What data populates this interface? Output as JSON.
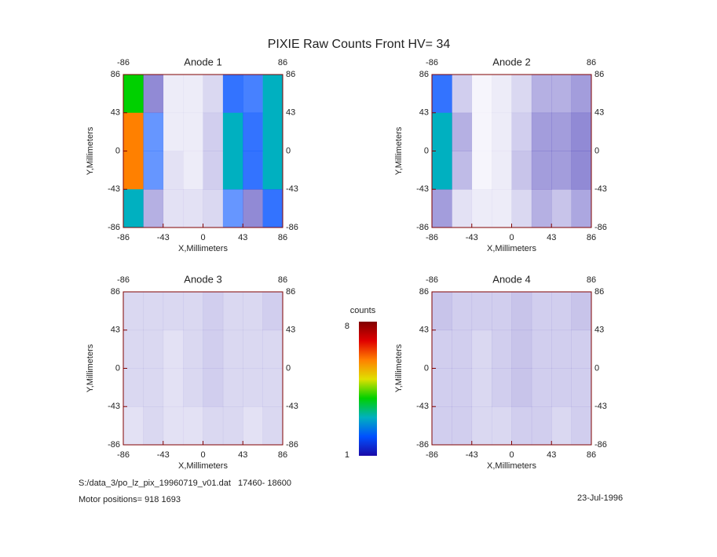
{
  "title": "PIXIE Raw Counts Front HV= 34",
  "chart_data": [
    {
      "type": "heatmap",
      "title": "Anode 1",
      "xlabel": "X,Millimeters",
      "ylabel": "Y,Millimeters",
      "xlim": [
        -86,
        86
      ],
      "ylim": [
        -86,
        86
      ],
      "xticks": [
        -86,
        -43,
        0,
        43,
        86
      ],
      "yticks": [
        -86,
        -43,
        0,
        43,
        86
      ],
      "z": [
        [
          4,
          1.2,
          0.2,
          0.2,
          0.4,
          2,
          1.8,
          2.5
        ],
        [
          6,
          1.5,
          0.2,
          0.2,
          0.5,
          2.5,
          2,
          3
        ],
        [
          5.5,
          1.5,
          0.3,
          0.2,
          0.5,
          2.5,
          2,
          3
        ],
        [
          2.5,
          0.8,
          0.3,
          0.3,
          0.4,
          1.5,
          1.2,
          2
        ]
      ]
    },
    {
      "type": "heatmap",
      "title": "Anode 2",
      "xlabel": "X,Millimeters",
      "ylabel": "Y,Millimeters",
      "xlim": [
        -86,
        86
      ],
      "ylim": [
        -86,
        86
      ],
      "xticks": [
        -86,
        -43,
        0,
        43,
        86
      ],
      "yticks": [
        -86,
        -43,
        0,
        43,
        86
      ],
      "z": [
        [
          2,
          0.5,
          0.1,
          0.2,
          0.4,
          0.8,
          0.8,
          1
        ],
        [
          3,
          0.8,
          0.1,
          0.2,
          0.5,
          1,
          1,
          1.2
        ],
        [
          2.5,
          0.7,
          0.1,
          0.2,
          0.6,
          1,
          1,
          1.2
        ],
        [
          1,
          0.3,
          0.2,
          0.2,
          0.4,
          0.8,
          0.6,
          0.9
        ]
      ]
    },
    {
      "type": "heatmap",
      "title": "Anode 3",
      "xlabel": "X,Millimeters",
      "ylabel": "Y,Millimeters",
      "xlim": [
        -86,
        86
      ],
      "ylim": [
        -86,
        86
      ],
      "xticks": [
        -86,
        -43,
        0,
        43,
        86
      ],
      "yticks": [
        -86,
        -43,
        0,
        43,
        86
      ],
      "z": [
        [
          0.4,
          0.4,
          0.4,
          0.4,
          0.5,
          0.4,
          0.4,
          0.5
        ],
        [
          0.4,
          0.4,
          0.3,
          0.4,
          0.5,
          0.4,
          0.4,
          0.4
        ],
        [
          0.4,
          0.4,
          0.3,
          0.4,
          0.5,
          0.4,
          0.4,
          0.4
        ],
        [
          0.3,
          0.4,
          0.3,
          0.3,
          0.4,
          0.4,
          0.3,
          0.4
        ]
      ]
    },
    {
      "type": "heatmap",
      "title": "Anode 4",
      "xlabel": "X,Millimeters",
      "ylabel": "Y,Millimeters",
      "xlim": [
        -86,
        86
      ],
      "ylim": [
        -86,
        86
      ],
      "xticks": [
        -86,
        -43,
        0,
        43,
        86
      ],
      "yticks": [
        -86,
        -43,
        0,
        43,
        86
      ],
      "z": [
        [
          0.6,
          0.5,
          0.5,
          0.5,
          0.6,
          0.5,
          0.5,
          0.6
        ],
        [
          0.5,
          0.5,
          0.4,
          0.5,
          0.6,
          0.5,
          0.5,
          0.5
        ],
        [
          0.5,
          0.5,
          0.4,
          0.5,
          0.6,
          0.5,
          0.5,
          0.5
        ],
        [
          0.5,
          0.5,
          0.4,
          0.4,
          0.5,
          0.5,
          0.4,
          0.5
        ]
      ]
    }
  ],
  "colorbar": {
    "label": "counts",
    "lim": [
      1,
      8
    ],
    "colors": [
      "#1a0aa8",
      "#0050ff",
      "#00b0c0",
      "#00d000",
      "#e0e000",
      "#ff8000",
      "#e00000",
      "#800000"
    ]
  },
  "footer": {
    "file": "S:/data_3/po_lz_pix_19960719_v01.dat   17460- 18600",
    "motor": "Motor positions= 918 1693",
    "date": "23-Jul-1996"
  }
}
